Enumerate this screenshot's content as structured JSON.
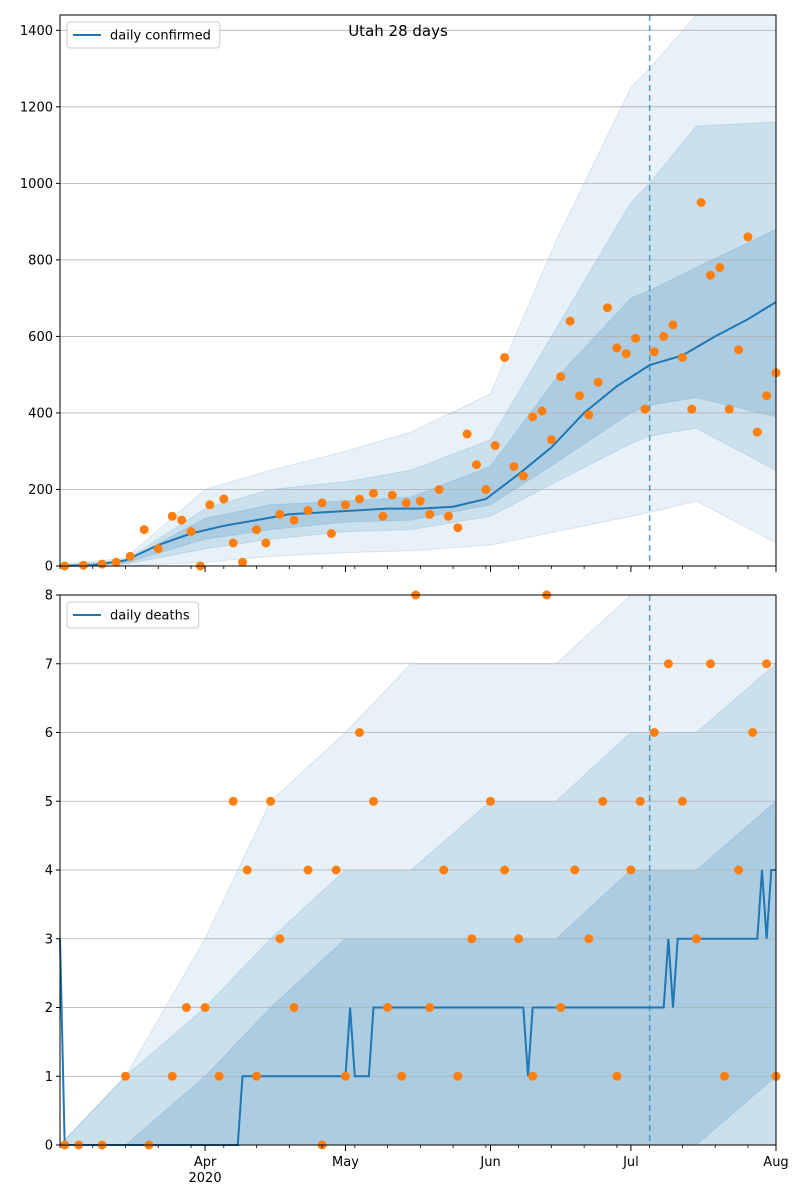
{
  "colors": {
    "line": "#1f77b4",
    "points": "#ff7f0e",
    "band": "#1f77b4",
    "grid": "#b0b0b0",
    "axis": "#000000"
  },
  "chart_data": [
    {
      "type": "line",
      "title": "Utah 28 days",
      "legend": [
        "daily confirmed"
      ],
      "legend_position": "top-left",
      "ylim": [
        0,
        1440
      ],
      "yticks": [
        0,
        200,
        400,
        600,
        800,
        1000,
        1200,
        1400
      ],
      "xlim": [
        "2020-03-01",
        "2020-08-01"
      ],
      "forecast_start": "2020-07-05",
      "grid": "y",
      "band_days": [
        "2020-03-01",
        "2020-03-15",
        "2020-04-01",
        "2020-04-15",
        "2020-05-01",
        "2020-05-15",
        "2020-06-01",
        "2020-06-15",
        "2020-07-01",
        "2020-07-05",
        "2020-07-15",
        "2020-08-01"
      ],
      "band_outer_low": [
        0,
        0,
        10,
        25,
        35,
        40,
        55,
        90,
        130,
        140,
        170,
        60
      ],
      "band_outer_high": [
        5,
        20,
        200,
        250,
        300,
        350,
        450,
        850,
        1250,
        1300,
        1440,
        1440
      ],
      "band_mid_low": [
        0,
        5,
        45,
        70,
        90,
        95,
        130,
        220,
        320,
        340,
        360,
        250
      ],
      "band_mid_high": [
        2,
        15,
        150,
        200,
        220,
        250,
        330,
        620,
        950,
        1000,
        1150,
        1160
      ],
      "band_inner_low": [
        0,
        8,
        70,
        95,
        115,
        120,
        160,
        270,
        400,
        420,
        440,
        390
      ],
      "band_inner_high": [
        1,
        12,
        125,
        160,
        170,
        180,
        260,
        490,
        700,
        720,
        780,
        880
      ],
      "series": [
        {
          "name": "daily confirmed",
          "x": [
            "2020-03-01",
            "2020-03-08",
            "2020-03-15",
            "2020-03-22",
            "2020-03-29",
            "2020-04-05",
            "2020-04-12",
            "2020-04-19",
            "2020-04-26",
            "2020-05-03",
            "2020-05-10",
            "2020-05-17",
            "2020-05-24",
            "2020-05-31",
            "2020-06-07",
            "2020-06-14",
            "2020-06-21",
            "2020-06-28",
            "2020-07-05",
            "2020-07-12",
            "2020-07-19",
            "2020-07-26",
            "2020-08-01"
          ],
          "y": [
            0,
            2,
            15,
            55,
            85,
            105,
            120,
            135,
            140,
            145,
            150,
            150,
            155,
            175,
            240,
            310,
            400,
            470,
            525,
            550,
            600,
            645,
            690
          ]
        },
        {
          "name": "observed",
          "x": [
            "2020-03-02",
            "2020-03-06",
            "2020-03-10",
            "2020-03-13",
            "2020-03-16",
            "2020-03-19",
            "2020-03-22",
            "2020-03-25",
            "2020-03-27",
            "2020-03-29",
            "2020-03-31",
            "2020-04-02",
            "2020-04-05",
            "2020-04-07",
            "2020-04-09",
            "2020-04-12",
            "2020-04-14",
            "2020-04-17",
            "2020-04-20",
            "2020-04-23",
            "2020-04-26",
            "2020-04-28",
            "2020-05-01",
            "2020-05-04",
            "2020-05-07",
            "2020-05-09",
            "2020-05-11",
            "2020-05-14",
            "2020-05-17",
            "2020-05-19",
            "2020-05-21",
            "2020-05-23",
            "2020-05-25",
            "2020-05-27",
            "2020-05-29",
            "2020-05-31",
            "2020-06-02",
            "2020-06-04",
            "2020-06-06",
            "2020-06-08",
            "2020-06-10",
            "2020-06-12",
            "2020-06-14",
            "2020-06-16",
            "2020-06-18",
            "2020-06-20",
            "2020-06-22",
            "2020-06-24",
            "2020-06-26",
            "2020-06-28",
            "2020-06-30",
            "2020-07-02",
            "2020-07-04",
            "2020-07-06",
            "2020-07-08",
            "2020-07-10",
            "2020-07-12",
            "2020-07-14",
            "2020-07-16",
            "2020-07-18",
            "2020-07-20",
            "2020-07-22",
            "2020-07-24",
            "2020-07-26",
            "2020-07-28",
            "2020-07-30",
            "2020-08-01"
          ],
          "y": [
            0,
            2,
            5,
            10,
            25,
            95,
            45,
            130,
            120,
            90,
            0,
            160,
            175,
            60,
            10,
            95,
            60,
            135,
            120,
            145,
            165,
            85,
            160,
            175,
            190,
            130,
            185,
            165,
            170,
            135,
            200,
            130,
            100,
            345,
            265,
            200,
            315,
            545,
            260,
            235,
            390,
            405,
            330,
            495,
            640,
            445,
            395,
            480,
            675,
            570,
            555,
            595,
            410,
            560,
            600,
            630,
            545,
            410,
            950,
            760,
            780,
            410,
            565,
            860,
            350,
            445,
            505
          ]
        }
      ]
    },
    {
      "type": "line",
      "title": "",
      "legend": [
        "daily deaths"
      ],
      "legend_position": "top-left",
      "ylim": [
        0,
        8
      ],
      "yticks": [
        0,
        1,
        2,
        3,
        4,
        5,
        6,
        7,
        8
      ],
      "xlim": [
        "2020-03-01",
        "2020-08-01"
      ],
      "forecast_start": "2020-07-05",
      "grid": "y",
      "xtick_labels": [
        {
          "date": "2020-04-01",
          "label": "Apr",
          "sublabel": "2020"
        },
        {
          "date": "2020-05-01",
          "label": "May",
          "sublabel": ""
        },
        {
          "date": "2020-06-01",
          "label": "Jun",
          "sublabel": ""
        },
        {
          "date": "2020-07-01",
          "label": "Jul",
          "sublabel": ""
        },
        {
          "date": "2020-08-01",
          "label": "Aug",
          "sublabel": ""
        }
      ],
      "band_days": [
        "2020-03-01",
        "2020-03-15",
        "2020-04-01",
        "2020-04-15",
        "2020-05-01",
        "2020-05-15",
        "2020-06-01",
        "2020-06-15",
        "2020-07-01",
        "2020-07-05",
        "2020-07-15",
        "2020-08-01"
      ],
      "band_outer_low": [
        0,
        0,
        0,
        0,
        0,
        0,
        0,
        0,
        0,
        0,
        0,
        0
      ],
      "band_outer_high": [
        0,
        1,
        3,
        5,
        6,
        7,
        7,
        7,
        8,
        8,
        8,
        8
      ],
      "band_mid_low": [
        0,
        0,
        0,
        0,
        0,
        0,
        0,
        0,
        0,
        0,
        0,
        0
      ],
      "band_mid_high": [
        0,
        1,
        2,
        3,
        4,
        4,
        5,
        5,
        6,
        6,
        6,
        7
      ],
      "band_inner_low": [
        0,
        0,
        0,
        0,
        0,
        0,
        0,
        0,
        0,
        0,
        0,
        1
      ],
      "band_inner_high": [
        0,
        0,
        1,
        2,
        3,
        3,
        3,
        3,
        4,
        4,
        4,
        5
      ],
      "series": [
        {
          "name": "daily deaths",
          "x": [
            "2020-03-01",
            "2020-03-02",
            "2020-04-08",
            "2020-04-09",
            "2020-05-01",
            "2020-05-02",
            "2020-05-03",
            "2020-05-06",
            "2020-05-07",
            "2020-06-08",
            "2020-06-09",
            "2020-06-10",
            "2020-07-08",
            "2020-07-09",
            "2020-07-10",
            "2020-07-11",
            "2020-07-28",
            "2020-07-29",
            "2020-07-30",
            "2020-07-31",
            "2020-08-01"
          ],
          "y": [
            3,
            0,
            0,
            1,
            1,
            2,
            1,
            1,
            2,
            2,
            1,
            2,
            2,
            3,
            2,
            3,
            3,
            4,
            3,
            4,
            4
          ]
        },
        {
          "name": "observed deaths",
          "x": [
            "2020-03-02",
            "2020-03-05",
            "2020-03-10",
            "2020-03-15",
            "2020-03-20",
            "2020-03-25",
            "2020-03-28",
            "2020-04-01",
            "2020-04-04",
            "2020-04-07",
            "2020-04-10",
            "2020-04-12",
            "2020-04-15",
            "2020-04-17",
            "2020-04-20",
            "2020-04-23",
            "2020-04-26",
            "2020-04-29",
            "2020-05-01",
            "2020-05-04",
            "2020-05-07",
            "2020-05-10",
            "2020-05-13",
            "2020-05-16",
            "2020-05-19",
            "2020-05-22",
            "2020-05-25",
            "2020-05-28",
            "2020-06-01",
            "2020-06-04",
            "2020-06-07",
            "2020-06-10",
            "2020-06-13",
            "2020-06-16",
            "2020-06-19",
            "2020-06-22",
            "2020-06-25",
            "2020-06-28",
            "2020-07-01",
            "2020-07-03",
            "2020-07-06",
            "2020-07-09",
            "2020-07-12",
            "2020-07-15",
            "2020-07-18",
            "2020-07-21",
            "2020-07-24",
            "2020-07-27",
            "2020-07-30",
            "2020-08-01"
          ],
          "y": [
            0,
            0,
            0,
            1,
            0,
            1,
            2,
            2,
            1,
            5,
            4,
            1,
            5,
            3,
            2,
            4,
            0,
            4,
            1,
            6,
            5,
            2,
            1,
            8,
            2,
            4,
            1,
            3,
            5,
            4,
            3,
            1,
            8,
            2,
            4,
            3,
            5,
            1,
            4,
            5,
            6,
            7,
            5,
            3,
            7,
            1,
            4,
            6,
            7,
            1
          ]
        }
      ]
    }
  ]
}
